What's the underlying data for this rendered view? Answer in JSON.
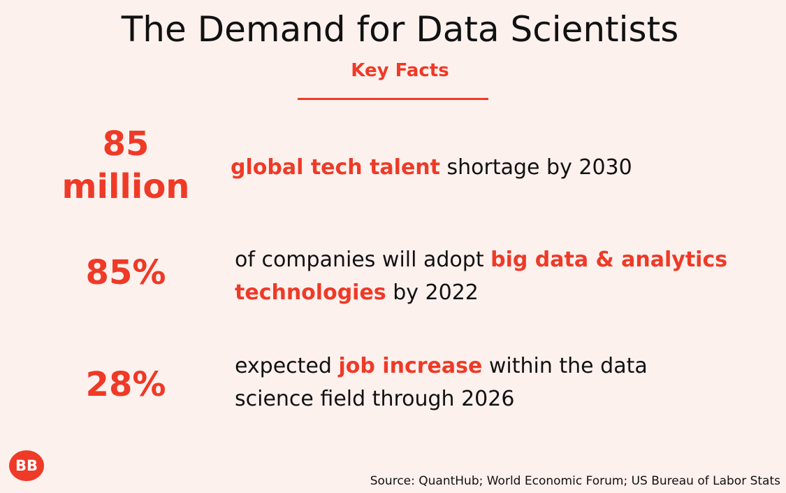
{
  "header": {
    "title": "The Demand for Data Scientists",
    "subtitle": "Key Facts"
  },
  "facts": [
    {
      "value_line1": "85",
      "value_line2": "million",
      "text_highlight": "global tech talent",
      "text_rest": " shortage by 2030"
    },
    {
      "value": "85%",
      "text_before": "of companies will adopt ",
      "text_highlight_1": "big data & analytics",
      "text_highlight_2": "technologies",
      "text_after": " by 2022"
    },
    {
      "value": "28%",
      "text_before": "expected ",
      "text_highlight": "job increase",
      "text_after_line1": " within the data",
      "text_line2": "science field through 2026"
    }
  ],
  "logo": {
    "text": "BB"
  },
  "footer": {
    "source": "Source: QuantHub; World Economic Forum; US Bureau of Labor Stats"
  },
  "colors": {
    "accent": "#ee3a27",
    "background": "#fdf1ee",
    "text": "#111111"
  }
}
